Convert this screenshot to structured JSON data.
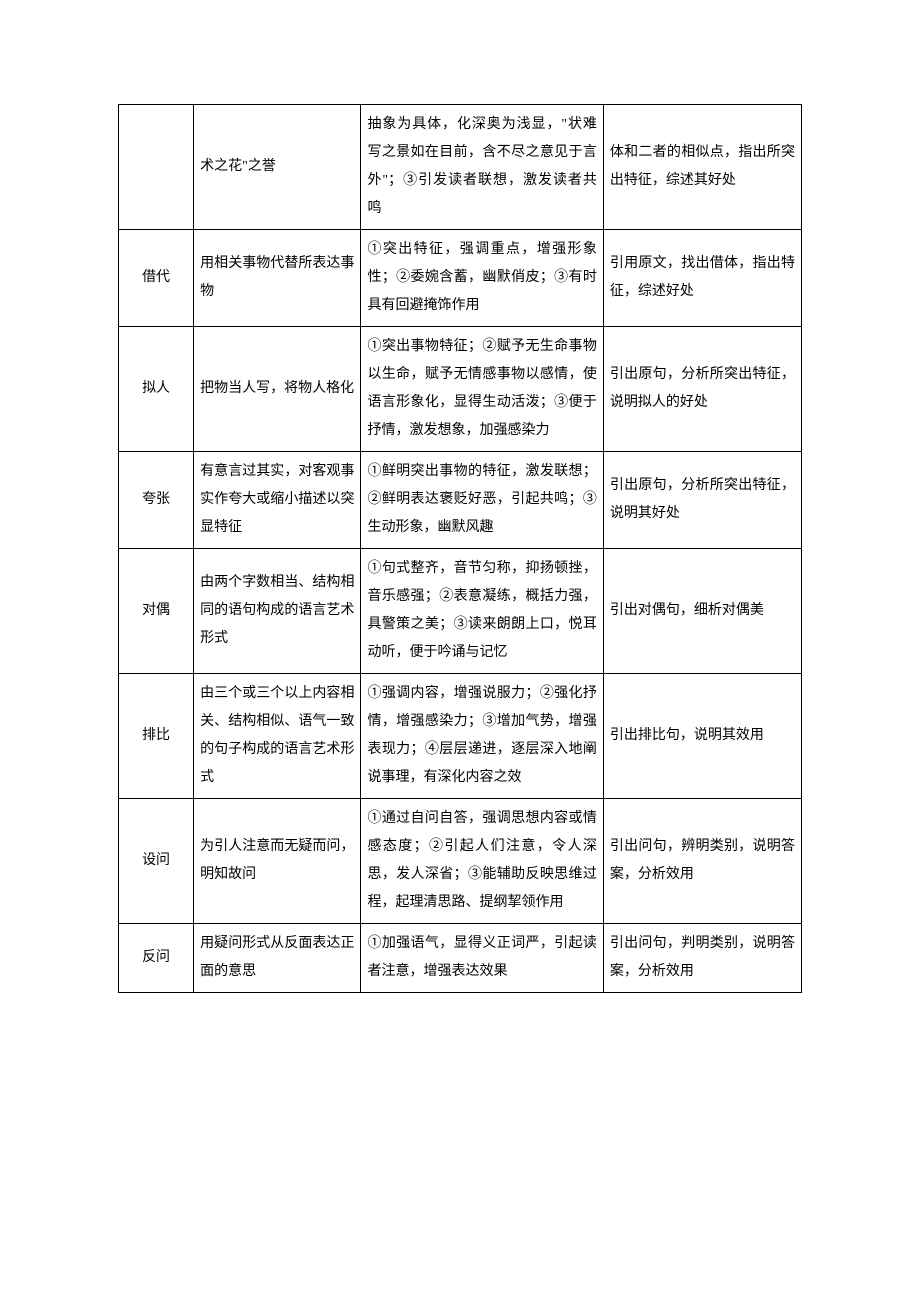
{
  "rows": [
    {
      "name": "",
      "definition": "术之花\"之誉",
      "effect": "抽象为具体，化深奥为浅显，\"状难写之景如在目前，含不尽之意见于言外\"；③引发读者联想，激发读者共鸣",
      "method": "体和二者的相似点，指出所突出特征，综述其好处"
    },
    {
      "name": "借代",
      "definition": "用相关事物代替所表达事物",
      "effect": "①突出特征，强调重点，增强形象性；②委婉含蓄，幽默俏皮；③有时具有回避掩饰作用",
      "method": "引用原文，找出借体，指出特征，综述好处"
    },
    {
      "name": "拟人",
      "definition": "把物当人写，将物人格化",
      "effect": "①突出事物特征；②赋予无生命事物以生命，赋予无情感事物以感情，使语言形象化，显得生动活泼；③便于抒情，激发想象，加强感染力",
      "method": "引出原句，分析所突出特征，说明拟人的好处"
    },
    {
      "name": "夸张",
      "definition": "有意言过其实，对客观事实作夸大或缩小描述以突显特征",
      "effect": "①鲜明突出事物的特征，激发联想；②鲜明表达褒贬好恶，引起共鸣；③生动形象，幽默风趣",
      "method": "引出原句，分析所突出特征，说明其好处"
    },
    {
      "name": "对偶",
      "definition": "由两个字数相当、结构相同的语句构成的语言艺术形式",
      "effect": "①句式整齐，音节匀称，抑扬顿挫，音乐感强；②表意凝练，概括力强，具警策之美；③读来朗朗上口，悦耳动听，便于吟诵与记忆",
      "method": "引出对偶句，细析对偶美"
    },
    {
      "name": "排比",
      "definition": "由三个或三个以上内容相关、结构相似、语气一致的句子构成的语言艺术形式",
      "effect": "①强调内容，增强说服力；②强化抒情，增强感染力；③增加气势，增强表现力；④层层递进，逐层深入地阐说事理，有深化内容之效",
      "method": "引出排比句，说明其效用"
    },
    {
      "name": "设问",
      "definition": "为引人注意而无疑而问，明知故问",
      "effect": "①通过自问自答，强调思想内容或情感态度；②引起人们注意，令人深思，发人深省；③能辅助反映思维过程，起理清思路、提纲挈领作用",
      "method": "引出问句，辨明类别，说明答案，分析效用"
    },
    {
      "name": "反问",
      "definition": "用疑问形式从反面表达正面的意思",
      "effect": "①加强语气，显得义正词严，引起读者注意，增强表达效果",
      "method": "引出问句，判明类别，说明答案，分析效用"
    }
  ]
}
